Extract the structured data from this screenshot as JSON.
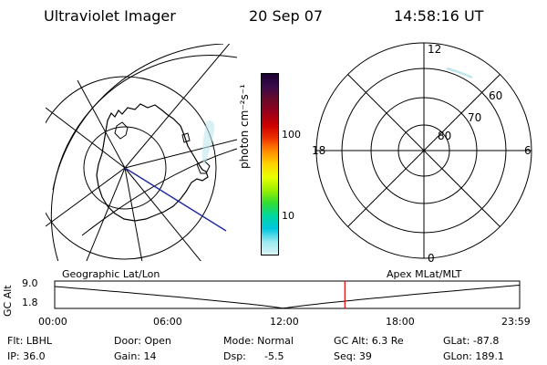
{
  "header": {
    "instrument": "Ultraviolet Imager",
    "date": "20 Sep 07",
    "time": "14:58:16 UT"
  },
  "colorbar": {
    "label": "photon cm⁻²s⁻¹",
    "tick_100": "100",
    "tick_10": "10",
    "colors": [
      "#1a0033",
      "#3a0a4a",
      "#6a0a2a",
      "#9a001a",
      "#cc0000",
      "#ee3300",
      "#ff8c00",
      "#ffd400",
      "#e8ff00",
      "#9cf000",
      "#33dd33",
      "#00d6a0",
      "#00c8e0",
      "#9ae8f0",
      "#dcf4f6"
    ]
  },
  "left_map": {
    "caption": "Geographic Lat/Lon"
  },
  "right_map": {
    "caption": "Apex  MLat/MLT",
    "mlt_top": "12",
    "mlt_left": "18",
    "mlt_right": "6",
    "mlt_bottom": "0",
    "lat_60": "60",
    "lat_70": "70",
    "lat_80": "80"
  },
  "gc_plot": {
    "ylabel": "GC Alt",
    "y_top": "9.0",
    "y_bottom": "1.8",
    "x_ticks": [
      "00:00",
      "06:00",
      "12:00",
      "18:00",
      "23:59"
    ],
    "current_time_marker": "14:58"
  },
  "info": {
    "filter": "Flt: LBHL",
    "ip": "IP: 36.0",
    "door": "Door: Open",
    "gain": "Gain: 14",
    "mode": "Mode: Normal",
    "dsp": "Dsp:",
    "dsp_val": "-5.5",
    "gc_alt": "GC Alt: 6.3 Re",
    "seq": "Seq: 39",
    "glat": "GLat: -87.8",
    "glon": "GLon: 189.1"
  }
}
